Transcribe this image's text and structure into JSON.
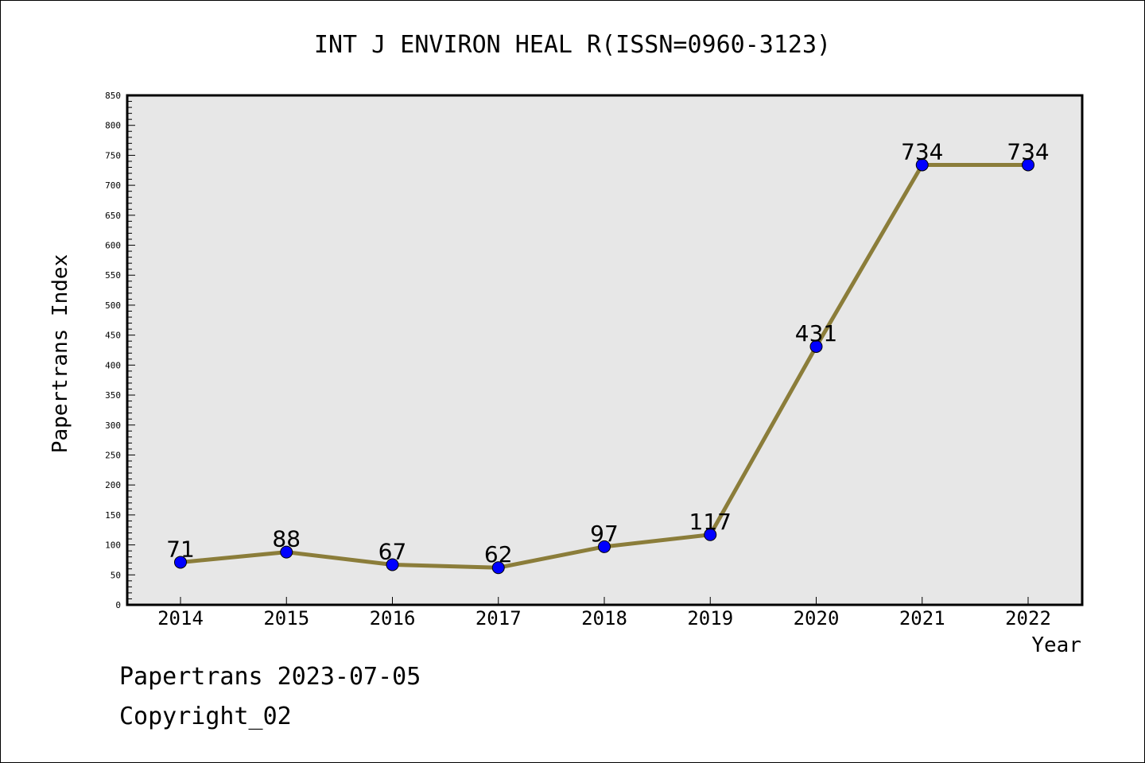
{
  "chart_data": {
    "type": "line",
    "title": "INT J ENVIRON HEAL R(ISSN=0960-3123)",
    "xlabel": "Year",
    "ylabel": "Papertrans Index",
    "categories": [
      "2014",
      "2015",
      "2016",
      "2017",
      "2018",
      "2019",
      "2020",
      "2021",
      "2022"
    ],
    "series": [
      {
        "values": [
          71,
          88,
          67,
          62,
          97,
          117,
          431,
          734,
          734
        ]
      }
    ],
    "ylim": [
      0,
      850
    ],
    "ytick_step": 50,
    "yticks": [
      "0",
      "50",
      "100",
      "150",
      "200",
      "250",
      "300",
      "350",
      "400",
      "450",
      "500",
      "550",
      "600",
      "650",
      "700",
      "750",
      "800",
      "850"
    ],
    "grid": false,
    "data_labels": true,
    "colors": {
      "line": "#8b7d3a",
      "marker": "#0000ff",
      "plot_bg": "#e7e7e7"
    }
  },
  "footer": {
    "line1": "Papertrans 2023-07-05",
    "line2": "Copyright_02"
  }
}
